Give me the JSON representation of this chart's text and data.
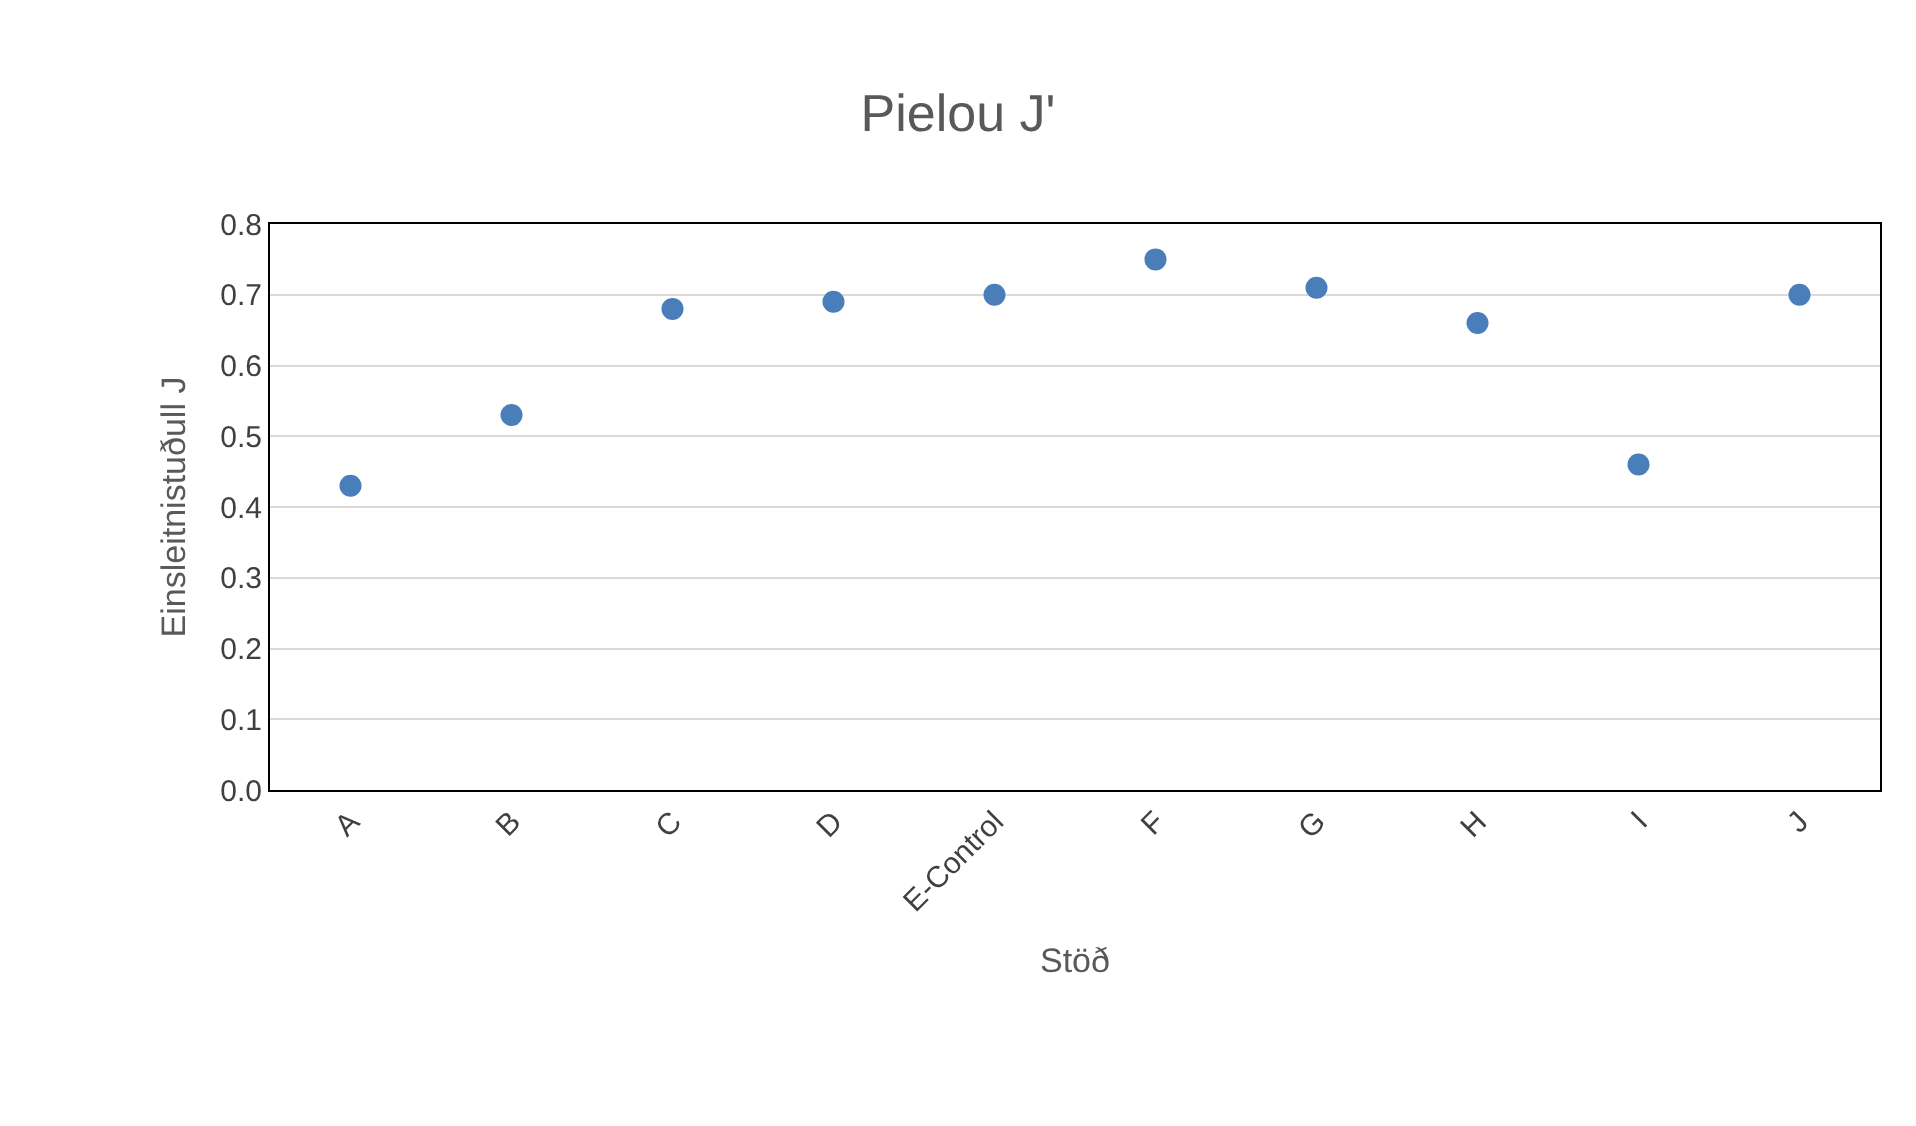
{
  "chart_data": {
    "type": "scatter",
    "title": "Pielou J'",
    "xlabel": "Stöð",
    "ylabel": "Einsleitnistuðull J",
    "categories": [
      "A",
      "B",
      "C",
      "D",
      "E-Control",
      "F",
      "G",
      "H",
      "I",
      "J"
    ],
    "series": [
      {
        "color": "#4a7ebb",
        "values": [
          0.43,
          0.53,
          0.68,
          0.69,
          0.7,
          0.75,
          0.71,
          0.66,
          0.46,
          0.7
        ]
      }
    ],
    "ylim": [
      0,
      0.8
    ],
    "yticks": [
      {
        "value": 0,
        "label": "0.0"
      },
      0.1,
      0.2,
      0.3,
      0.4,
      0.5,
      0.6,
      0.7,
      0.8
    ],
    "grid": "y",
    "marker": "circle"
  }
}
